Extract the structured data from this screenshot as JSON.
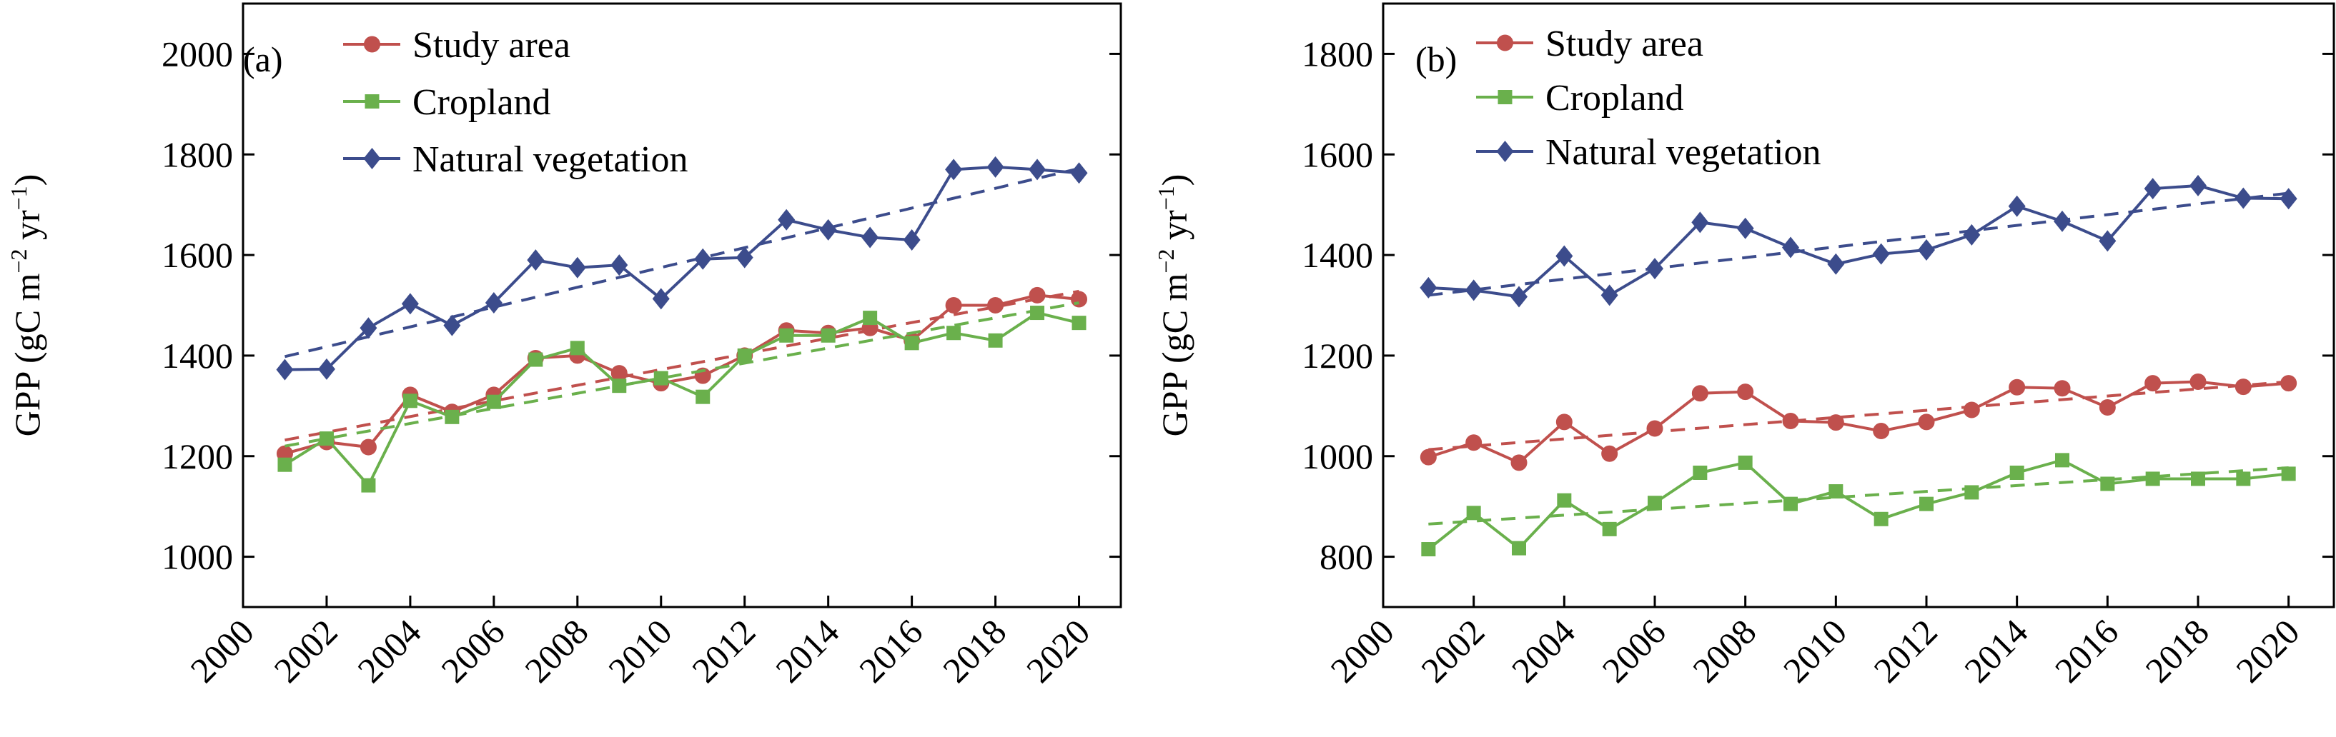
{
  "chart_data": [
    {
      "type": "line",
      "panel_label": "(a)",
      "title": "",
      "xlabel": "",
      "ylabel": "GPP (gC m",
      "ylabel_sup1": "−2",
      "ylabel_mid": " yr",
      "ylabel_sup2": "−1",
      "ylabel_end": ")",
      "xlim": [
        2000,
        2021
      ],
      "ylim": [
        900,
        2100
      ],
      "xticks": [
        2000,
        2002,
        2004,
        2006,
        2008,
        2010,
        2012,
        2014,
        2016,
        2018,
        2020
      ],
      "yticks": [
        1000,
        1200,
        1400,
        1600,
        1800,
        2000
      ],
      "legend_position": "top-left",
      "grid": false,
      "x": [
        2001,
        2002,
        2003,
        2004,
        2005,
        2006,
        2007,
        2008,
        2009,
        2010,
        2011,
        2012,
        2013,
        2014,
        2015,
        2016,
        2017,
        2018,
        2019,
        2020
      ],
      "series": [
        {
          "name": "Study area",
          "color": "#c0504d",
          "marker": "circle",
          "values": [
            1205,
            1228,
            1218,
            1322,
            1288,
            1322,
            1395,
            1400,
            1365,
            1345,
            1360,
            1400,
            1450,
            1445,
            1455,
            1430,
            1500,
            1500,
            1520,
            1512
          ],
          "trend": [
            1232,
            1528
          ]
        },
        {
          "name": "Cropland",
          "color": "#6ab04c",
          "marker": "square",
          "values": [
            1183,
            1235,
            1142,
            1310,
            1278,
            1308,
            1392,
            1415,
            1340,
            1355,
            1318,
            1400,
            1440,
            1440,
            1475,
            1425,
            1445,
            1430,
            1485,
            1465
          ],
          "trend": [
            1220,
            1505
          ]
        },
        {
          "name": "Natural vegetation",
          "color": "#3c4c8c",
          "marker": "diamond",
          "values": [
            1372,
            1373,
            1455,
            1503,
            1460,
            1505,
            1590,
            1575,
            1580,
            1513,
            1592,
            1595,
            1670,
            1650,
            1635,
            1630,
            1770,
            1775,
            1770,
            1763
          ],
          "trend": [
            1398,
            1772
          ]
        }
      ]
    },
    {
      "type": "line",
      "panel_label": "(b)",
      "title": "",
      "xlabel": "",
      "ylabel": "GPP (gC m",
      "ylabel_sup1": "−2",
      "ylabel_mid": " yr",
      "ylabel_sup2": "−1",
      "ylabel_end": ")",
      "xlim": [
        2000,
        2021
      ],
      "ylim": [
        700,
        1900
      ],
      "xticks": [
        2000,
        2002,
        2004,
        2006,
        2008,
        2010,
        2012,
        2014,
        2016,
        2018,
        2020
      ],
      "yticks": [
        800,
        1000,
        1200,
        1400,
        1600,
        1800
      ],
      "legend_position": "top-left",
      "grid": false,
      "x": [
        2001,
        2002,
        2003,
        2004,
        2005,
        2006,
        2007,
        2008,
        2009,
        2010,
        2011,
        2012,
        2013,
        2014,
        2015,
        2016,
        2017,
        2018,
        2019,
        2020
      ],
      "series": [
        {
          "name": "Study area",
          "color": "#c0504d",
          "marker": "circle",
          "values": [
            998,
            1027,
            987,
            1068,
            1005,
            1055,
            1125,
            1128,
            1070,
            1067,
            1050,
            1068,
            1092,
            1137,
            1135,
            1097,
            1145,
            1148,
            1138,
            1145
          ],
          "trend": [
            1013,
            1148
          ]
        },
        {
          "name": "Cropland",
          "color": "#6ab04c",
          "marker": "square",
          "values": [
            815,
            887,
            817,
            912,
            855,
            907,
            967,
            987,
            905,
            930,
            875,
            905,
            928,
            967,
            992,
            945,
            955,
            955,
            955,
            965
          ],
          "trend": [
            865,
            977
          ]
        },
        {
          "name": "Natural vegetation",
          "color": "#3c4c8c",
          "marker": "diamond",
          "values": [
            1335,
            1330,
            1317,
            1398,
            1320,
            1373,
            1465,
            1453,
            1415,
            1382,
            1402,
            1410,
            1440,
            1497,
            1467,
            1428,
            1532,
            1538,
            1513,
            1512
          ],
          "trend": [
            1320,
            1523
          ]
        }
      ]
    }
  ]
}
